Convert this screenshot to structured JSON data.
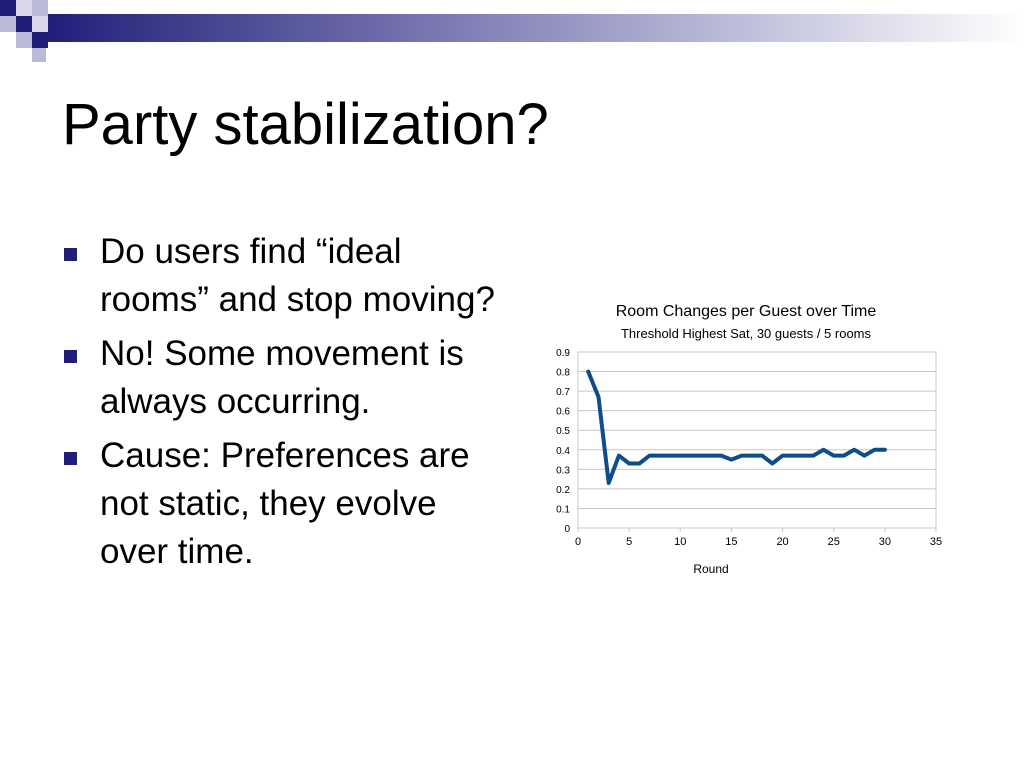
{
  "slide": {
    "title": "Party stabilization?",
    "bullets": [
      "Do users find “ideal rooms” and stop moving?",
      "No! Some movement is always occurring.",
      "Cause: Preferences are not static, they evolve over time."
    ]
  },
  "colors": {
    "accent": "#1f1f7a",
    "series_line": "#0e4d8c",
    "grid": "#c8c8c8"
  },
  "chart_data": {
    "type": "line",
    "title": "Room Changes per Guest over Time",
    "subtitle": "Threshold Highest Sat, 30 guests / 5 rooms",
    "xlabel": "Round",
    "ylabel": "",
    "xlim": [
      0,
      35
    ],
    "ylim": [
      0,
      0.9
    ],
    "xticks": [
      0,
      5,
      10,
      15,
      20,
      25,
      30,
      35
    ],
    "yticks": [
      0,
      0.1,
      0.2,
      0.3,
      0.4,
      0.5,
      0.6,
      0.7,
      0.8,
      0.9
    ],
    "grid": true,
    "legend": "none",
    "series": [
      {
        "x": [
          1,
          2,
          3,
          4,
          5,
          6,
          7,
          8,
          9,
          10,
          11,
          12,
          13,
          14,
          15,
          16,
          17,
          18,
          19,
          20,
          21,
          22,
          23,
          24,
          25,
          26,
          27,
          28,
          29,
          30
        ],
        "values": [
          0.8,
          0.67,
          0.23,
          0.37,
          0.33,
          0.33,
          0.37,
          0.37,
          0.37,
          0.37,
          0.37,
          0.37,
          0.37,
          0.37,
          0.35,
          0.37,
          0.37,
          0.37,
          0.33,
          0.37,
          0.37,
          0.37,
          0.37,
          0.4,
          0.37,
          0.37,
          0.4,
          0.37,
          0.4,
          0.4
        ]
      }
    ]
  }
}
